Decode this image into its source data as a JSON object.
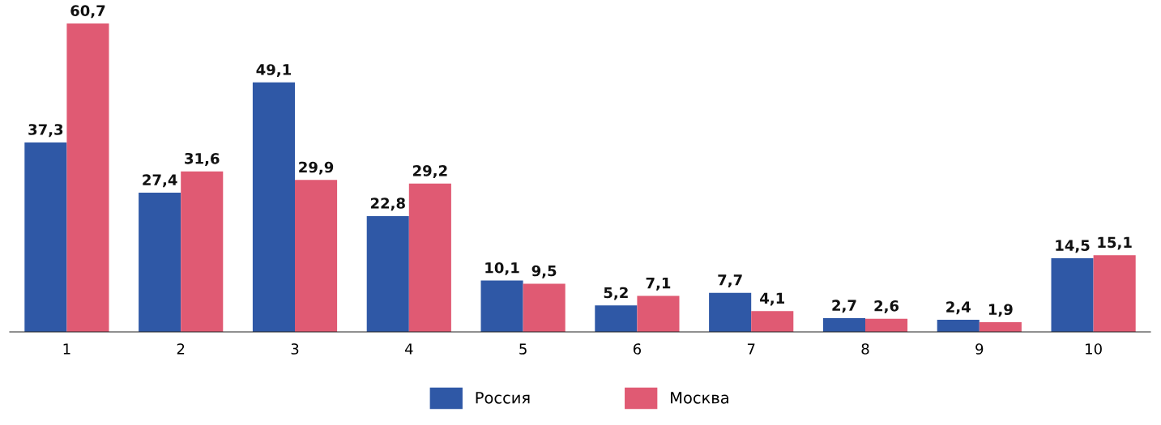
{
  "chart_data": {
    "type": "bar",
    "categories": [
      "1",
      "2",
      "3",
      "4",
      "5",
      "6",
      "7",
      "8",
      "9",
      "10"
    ],
    "series": [
      {
        "name": "Россия",
        "color": "#2f58a6",
        "values": [
          37.3,
          27.4,
          49.1,
          22.8,
          10.1,
          5.2,
          7.7,
          2.7,
          2.4,
          14.5
        ],
        "value_labels": [
          "37,3",
          "27,4",
          "49,1",
          "22,8",
          "10,1",
          "5,2",
          "7,7",
          "2,7",
          "2,4",
          "14,5"
        ]
      },
      {
        "name": "Москва",
        "color": "#e05a73",
        "values": [
          60.7,
          31.6,
          29.9,
          29.2,
          9.5,
          7.1,
          4.1,
          2.6,
          1.9,
          15.1
        ],
        "value_labels": [
          "60,7",
          "31,6",
          "29,9",
          "29,2",
          "9,5",
          "7,1",
          "4,1",
          "2,6",
          "1,9",
          "15,1"
        ]
      }
    ],
    "tick_labels": "x",
    "grid": false,
    "legend": "bottom"
  }
}
